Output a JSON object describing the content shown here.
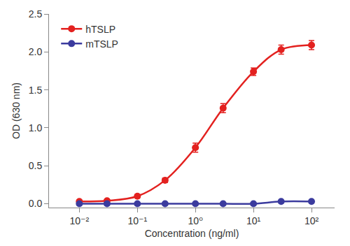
{
  "chart_data": {
    "type": "line",
    "x_label": "Concentration (ng/ml)",
    "y_label": "OD (630 nm)",
    "x": [
      0.01,
      0.03,
      0.1,
      0.3,
      1,
      3,
      10,
      30,
      100
    ],
    "series": [
      {
        "name": "hTSLP",
        "color": "#e3211f",
        "marker": "circle",
        "line_style": "solid",
        "values": [
          0.03,
          0.04,
          0.1,
          0.31,
          0.74,
          1.26,
          1.74,
          2.03,
          2.09
        ],
        "errors": [
          0.02,
          0.02,
          0.02,
          0.03,
          0.06,
          0.06,
          0.05,
          0.06,
          0.06
        ]
      },
      {
        "name": "mTSLP",
        "color": "#3b3b9e",
        "marker": "circle",
        "line_style": "solid",
        "values": [
          0.0,
          0.0,
          0.0,
          0.0,
          0.0,
          0.0,
          0.0,
          0.03,
          0.03
        ],
        "errors": [
          0.01,
          0.01,
          0.01,
          0.01,
          0.01,
          0.01,
          0.01,
          0.01,
          0.01
        ]
      }
    ],
    "log": "x",
    "xlim": [
      0.003,
      250
    ],
    "xticks": [
      {
        "value": 0.01,
        "label": "10⁻²"
      },
      {
        "value": 0.1,
        "label": "10⁻¹"
      },
      {
        "value": 1,
        "label": "10⁰"
      },
      {
        "value": 10,
        "label": "10¹"
      },
      {
        "value": 100,
        "label": "10²"
      }
    ],
    "ylim": [
      -0.05,
      2.5
    ],
    "yticks": [
      {
        "value": 0,
        "label": "0.0"
      },
      {
        "value": 0.5,
        "label": "0.5"
      },
      {
        "value": 1,
        "label": "1.0"
      },
      {
        "value": 1.5,
        "label": "1.5"
      },
      {
        "value": 2,
        "label": "2.0"
      },
      {
        "value": 2.5,
        "label": "2.5"
      }
    ],
    "grid": false,
    "legend": "upper left"
  }
}
